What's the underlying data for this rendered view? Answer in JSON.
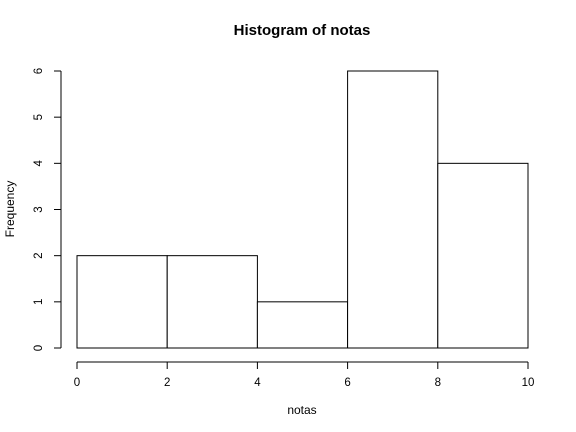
{
  "chart_data": {
    "type": "bar",
    "title": "Histogram of notas",
    "xlabel": "notas",
    "ylabel": "Frequency",
    "bins": [
      {
        "from": 0,
        "to": 2,
        "count": 2
      },
      {
        "from": 2,
        "to": 4,
        "count": 2
      },
      {
        "from": 4,
        "to": 6,
        "count": 1
      },
      {
        "from": 6,
        "to": 8,
        "count": 6
      },
      {
        "from": 8,
        "to": 10,
        "count": 4
      }
    ],
    "xlim": [
      0,
      10
    ],
    "ylim": [
      0,
      6
    ],
    "x_ticks": [
      "0",
      "2",
      "4",
      "6",
      "8",
      "10"
    ],
    "y_ticks": [
      "0",
      "1",
      "2",
      "3",
      "4",
      "5",
      "6"
    ],
    "bar_fill": "#ffffff",
    "bar_stroke": "#000000",
    "grid": false,
    "legend": "none"
  }
}
